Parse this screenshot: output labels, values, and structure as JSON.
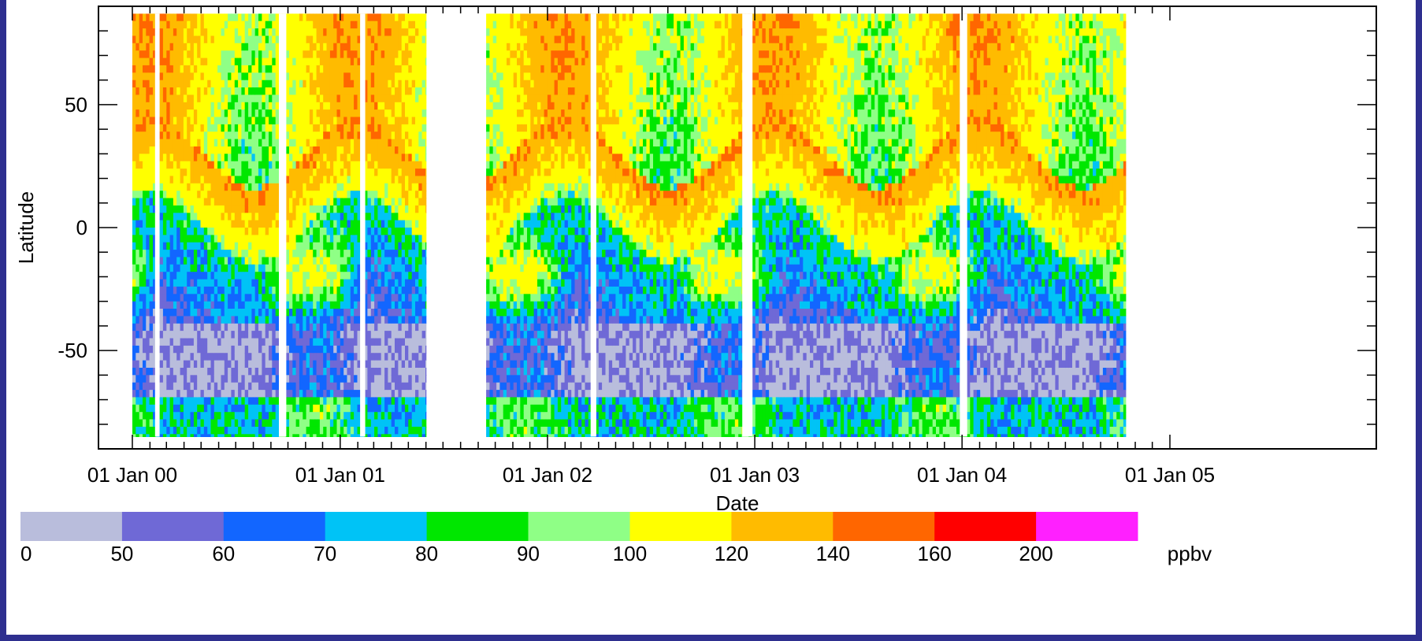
{
  "chart_data": {
    "type": "heatmap",
    "title": "",
    "xlabel": "Date",
    "ylabel": "Latitude",
    "x_tick_labels": [
      "01 Jan 00",
      "01 Jan 01",
      "01 Jan 02",
      "01 Jan 03",
      "01 Jan 04",
      "01 Jan 05"
    ],
    "x_range": [
      "2000-01-01",
      "2005-01-01"
    ],
    "y_ticks": [
      50,
      0,
      -50
    ],
    "y_tick_labels": [
      "50",
      "0",
      "-50"
    ],
    "ylim": [
      -90,
      90
    ],
    "data_lat_range": [
      -85,
      87
    ],
    "data_periods": [
      [
        "2000-01-01",
        "2001-06-01"
      ],
      [
        "2001-09-15",
        "2004-10-15"
      ]
    ],
    "data_gaps": [
      [
        "2000-02-10",
        "2000-02-18"
      ],
      [
        "2000-09-15",
        "2000-09-28"
      ],
      [
        "2001-02-05",
        "2001-02-14"
      ],
      [
        "2002-03-18",
        "2002-03-28"
      ],
      [
        "2002-12-10",
        "2002-12-28"
      ],
      [
        "2003-12-28",
        "2004-01-10"
      ]
    ],
    "grid": false,
    "colorbar": {
      "unit": "ppbv",
      "tick_labels": [
        "0",
        "50",
        "60",
        "70",
        "80",
        "90",
        "100",
        "120",
        "140",
        "160",
        "200"
      ],
      "colors": [
        "#b9bddc",
        "#6f69d6",
        "#1266ff",
        "#00c3f6",
        "#00e700",
        "#8fff86",
        "#ffff00",
        "#ffbb00",
        "#ff6600",
        "#ff0000",
        "#ff20ff"
      ]
    },
    "pattern_description": {
      "northern_peak_months": "Jan-Apr",
      "southern_peak_months": "Sep-Nov",
      "north_peak_ppbv": 140,
      "south_peak_ppbv": 108,
      "south_trough_ppbv": 48
    }
  }
}
